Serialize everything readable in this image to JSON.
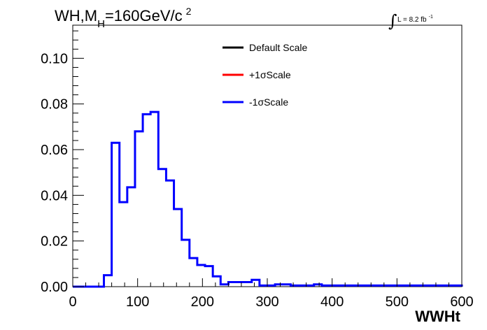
{
  "chart_data": {
    "type": "histogram",
    "title": {
      "main": "WH,M",
      "sub": "H",
      "rest": "=160GeV/c",
      "sup": "2"
    },
    "luminosity": {
      "integral": "∫",
      "text": "L = 8.2 fb",
      "sup": "-1"
    },
    "xlabel": "WWHt",
    "ylabel": "",
    "xlim": [
      0,
      600
    ],
    "ylim": [
      0,
      0.1145
    ],
    "bin_width": 12,
    "x_ticks": [
      0,
      100,
      200,
      300,
      400,
      500,
      600
    ],
    "x_tick_labels": [
      "0",
      "100",
      "200",
      "300",
      "400",
      "500",
      "600"
    ],
    "y_ticks": [
      0,
      0.02,
      0.04,
      0.06,
      0.08,
      0.1
    ],
    "y_tick_labels": [
      "0.00",
      "0.02",
      "0.04",
      "0.06",
      "0.08",
      "0.10"
    ],
    "legend": {
      "placement": "top-center",
      "entries": [
        {
          "label": "Default Scale",
          "color": "#000000"
        },
        {
          "label": "+1σScale",
          "color": "#ff0000"
        },
        {
          "label": "-1σScale",
          "color": "#0000ff"
        }
      ]
    },
    "series": [
      {
        "name": "-1σScale",
        "color": "#0000ff",
        "values": [
          0,
          0,
          0,
          0,
          0.005,
          0.063,
          0.037,
          0.0435,
          0.068,
          0.0755,
          0.0765,
          0.0515,
          0.0465,
          0.034,
          0.0205,
          0.0125,
          0.0095,
          0.009,
          0.0045,
          0.001,
          0.002,
          0.002,
          0.002,
          0.003,
          0.0005,
          0.0005,
          0.001,
          0.001,
          0.0005,
          0.0005,
          0.0005,
          0.001,
          0.0005,
          0.0005,
          0.0005,
          0.0005,
          0.0005,
          0.0005,
          0.0005,
          0.0005,
          0.0005,
          0.0005,
          0.0005,
          0.0005,
          0.0005,
          0.0005,
          0.0005,
          0.0005,
          0.0005,
          0.0005
        ]
      }
    ]
  }
}
